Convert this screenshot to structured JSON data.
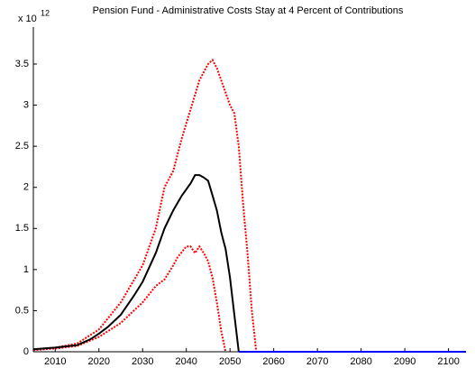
{
  "chart_data": {
    "type": "line",
    "title": "Pension Fund - Administrative Costs Stay at 4 Percent of Contributions",
    "y_multiplier": "x 10",
    "y_exponent": "12",
    "series": [
      {
        "color": "#ff0000",
        "dash": "dotted",
        "x": [
          2005,
          2010,
          2015,
          2020,
          2025,
          2030,
          2033,
          2035,
          2037,
          2039,
          2041,
          2043,
          2045,
          2046,
          2047,
          2048,
          2050,
          2051,
          2052,
          2053,
          2054,
          2055,
          2056
        ],
        "values": [
          0.03,
          0.05,
          0.1,
          0.27,
          0.6,
          1.05,
          1.5,
          2.0,
          2.2,
          2.6,
          2.95,
          3.3,
          3.5,
          3.55,
          3.45,
          3.3,
          3.0,
          2.9,
          2.5,
          1.8,
          1.2,
          0.5,
          0
        ]
      },
      {
        "color": "#ff0000",
        "dash": "dotted",
        "x": [
          2005,
          2010,
          2015,
          2020,
          2025,
          2030,
          2033,
          2035,
          2037,
          2038,
          2040,
          2041,
          2042,
          2043,
          2044,
          2045,
          2046,
          2047,
          2048,
          2049
        ],
        "values": [
          0.02,
          0.04,
          0.07,
          0.18,
          0.35,
          0.6,
          0.8,
          0.88,
          1.05,
          1.15,
          1.28,
          1.28,
          1.2,
          1.28,
          1.2,
          1.1,
          0.9,
          0.6,
          0.25,
          0
        ]
      },
      {
        "color": "#000000",
        "dash": "solid",
        "x": [
          2005,
          2010,
          2015,
          2018,
          2020,
          2022,
          2025,
          2028,
          2030,
          2033,
          2035,
          2037,
          2039,
          2041,
          2042,
          2043,
          2044,
          2045,
          2046,
          2047,
          2048,
          2049,
          2050,
          2051,
          2052
        ],
        "values": [
          0.03,
          0.05,
          0.08,
          0.15,
          0.22,
          0.3,
          0.45,
          0.68,
          0.85,
          1.2,
          1.5,
          1.72,
          1.9,
          2.05,
          2.15,
          2.15,
          2.12,
          2.08,
          1.9,
          1.72,
          1.45,
          1.25,
          0.9,
          0.45,
          0
        ]
      },
      {
        "color": "#0000ff",
        "dash": "solid",
        "x": [
          2052,
          2104
        ],
        "values": [
          0,
          0
        ]
      }
    ],
    "xlim": [
      2005,
      2104
    ],
    "xticks": [
      2010,
      2020,
      2030,
      2040,
      2050,
      2060,
      2070,
      2080,
      2090,
      2100
    ],
    "ylim": [
      0,
      3.95
    ],
    "yticks": [
      0,
      0.5,
      1,
      1.5,
      2,
      2.5,
      3,
      3.5
    ]
  }
}
